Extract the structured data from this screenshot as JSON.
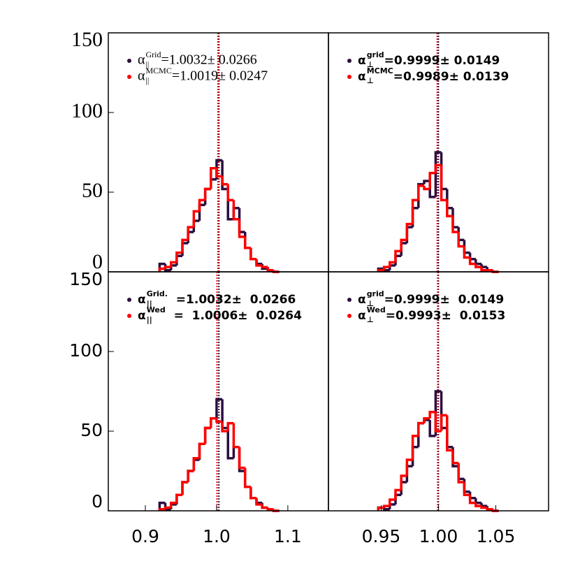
{
  "chart_data": [
    {
      "type": "histogram",
      "xlim": [
        0.848,
        1.157
      ],
      "ylim": [
        0,
        150
      ],
      "yticks": [
        0,
        50,
        100,
        150
      ],
      "bins": [
        0.92,
        0.928,
        0.936,
        0.944,
        0.952,
        0.96,
        0.968,
        0.976,
        0.984,
        0.992,
        1.0,
        1.008,
        1.016,
        1.024,
        1.032,
        1.04,
        1.048,
        1.056,
        1.064,
        1.072,
        1.08,
        1.088
      ],
      "series": [
        {
          "color": "#2b0f3f",
          "mean": 1.0032,
          "legend": {
            "symbol": "α",
            "sup": "Grid",
            "sub": "||",
            "text": "=1.0032± 0.0266"
          },
          "values": [
            5,
            1,
            4,
            10,
            18,
            25,
            32,
            42,
            52,
            58,
            70,
            52,
            33,
            40,
            25,
            15,
            8,
            5,
            2,
            1,
            0
          ]
        },
        {
          "color": "#ff0000",
          "mean": 1.0019,
          "legend": {
            "symbol": "α",
            "sup": "MCMC",
            "sub": "||",
            "text": "=1.0019± 0.0247"
          },
          "values": [
            2,
            3,
            6,
            12,
            20,
            28,
            38,
            45,
            52,
            65,
            60,
            55,
            45,
            33,
            22,
            15,
            8,
            4,
            3,
            1,
            0
          ]
        }
      ]
    },
    {
      "type": "histogram",
      "xlim": [
        0.904,
        1.096
      ],
      "ylim": [
        0,
        150
      ],
      "bins": [
        0.9475,
        0.9525,
        0.9575,
        0.9625,
        0.9675,
        0.9725,
        0.9775,
        0.9825,
        0.9875,
        0.9925,
        0.9975,
        1.0025,
        1.0075,
        1.0125,
        1.0175,
        1.0225,
        1.0275,
        1.0325,
        1.0375,
        1.0425,
        1.0475,
        1.0525
      ],
      "series": [
        {
          "color": "#2b0f3f",
          "mean": 0.9999,
          "legend": {
            "symbol": "α",
            "sup": "grid",
            "sub": "⊥",
            "text": "=0.9999± 0.0149"
          },
          "values": [
            2,
            1,
            4,
            10,
            18,
            28,
            40,
            55,
            57,
            47,
            75,
            52,
            40,
            28,
            20,
            12,
            8,
            5,
            3,
            1,
            0
          ]
        },
        {
          "color": "#ff0000",
          "mean": 0.9989,
          "legend": {
            "symbol": "α",
            "sup": "MCMC",
            "sub": "⊥",
            "text": "=0.9989± 0.0139"
          },
          "values": [
            1,
            3,
            6,
            13,
            20,
            30,
            45,
            54,
            52,
            62,
            67,
            45,
            35,
            25,
            16,
            9,
            5,
            3,
            1,
            1,
            0
          ]
        }
      ]
    },
    {
      "type": "histogram",
      "xlim": [
        0.848,
        1.157
      ],
      "ylim": [
        0,
        150
      ],
      "yticks": [
        0,
        50,
        100,
        150
      ],
      "xticks": [
        0.9,
        {
          "value": 1,
          "label": "1.0"
        },
        1.1
      ],
      "bins": [
        0.92,
        0.928,
        0.936,
        0.944,
        0.952,
        0.96,
        0.968,
        0.976,
        0.984,
        0.992,
        1.0,
        1.008,
        1.016,
        1.024,
        1.032,
        1.04,
        1.048,
        1.056,
        1.064,
        1.072,
        1.08,
        1.088
      ],
      "series": [
        {
          "color": "#2b0f3f",
          "mean": 1.0032,
          "legend": {
            "symbol": "α",
            "sup": "Grid.",
            "sub": "||",
            "text": "  =1.0032±  0.0266"
          },
          "values": [
            5,
            1,
            4,
            10,
            18,
            25,
            32,
            42,
            52,
            58,
            70,
            52,
            33,
            40,
            25,
            15,
            8,
            5,
            2,
            1,
            0
          ]
        },
        {
          "color": "#ff0000",
          "mean": 1.0006,
          "legend": {
            "symbol": "α",
            "sup": "Wed",
            "sub": "||",
            "text": "  =  1.0006±  0.0264"
          },
          "values": [
            1,
            2,
            5,
            10,
            18,
            25,
            33,
            42,
            52,
            58,
            56,
            50,
            55,
            40,
            27,
            15,
            8,
            4,
            2,
            1,
            0
          ]
        }
      ]
    },
    {
      "type": "histogram",
      "xlim": [
        0.904,
        1.096
      ],
      "ylim": [
        0,
        150
      ],
      "xticks": [
        0.95,
        {
          "value": 1,
          "label": "1.00"
        },
        1.05
      ],
      "bins": [
        0.9475,
        0.9525,
        0.9575,
        0.9625,
        0.9675,
        0.9725,
        0.9775,
        0.9825,
        0.9875,
        0.9925,
        0.9975,
        1.0025,
        1.0075,
        1.0125,
        1.0175,
        1.0225,
        1.0275,
        1.0325,
        1.0375,
        1.0425,
        1.0475,
        1.0525
      ],
      "series": [
        {
          "color": "#2b0f3f",
          "mean": 0.9999,
          "legend": {
            "symbol": "α",
            "sup": "grid",
            "sub": "⊥",
            "text": "=0.9999±  0.0149"
          },
          "values": [
            2,
            1,
            4,
            10,
            18,
            28,
            40,
            55,
            57,
            47,
            75,
            52,
            40,
            28,
            20,
            12,
            8,
            5,
            3,
            1,
            0
          ]
        },
        {
          "color": "#ff0000",
          "mean": 0.9993,
          "legend": {
            "symbol": "α",
            "sup": "Wed",
            "sub": "⊥",
            "text": "=0.9993±  0.0153"
          },
          "values": [
            2,
            3,
            7,
            13,
            22,
            32,
            47,
            55,
            58,
            62,
            50,
            60,
            38,
            30,
            18,
            10,
            5,
            3,
            2,
            1,
            0
          ]
        }
      ]
    }
  ]
}
